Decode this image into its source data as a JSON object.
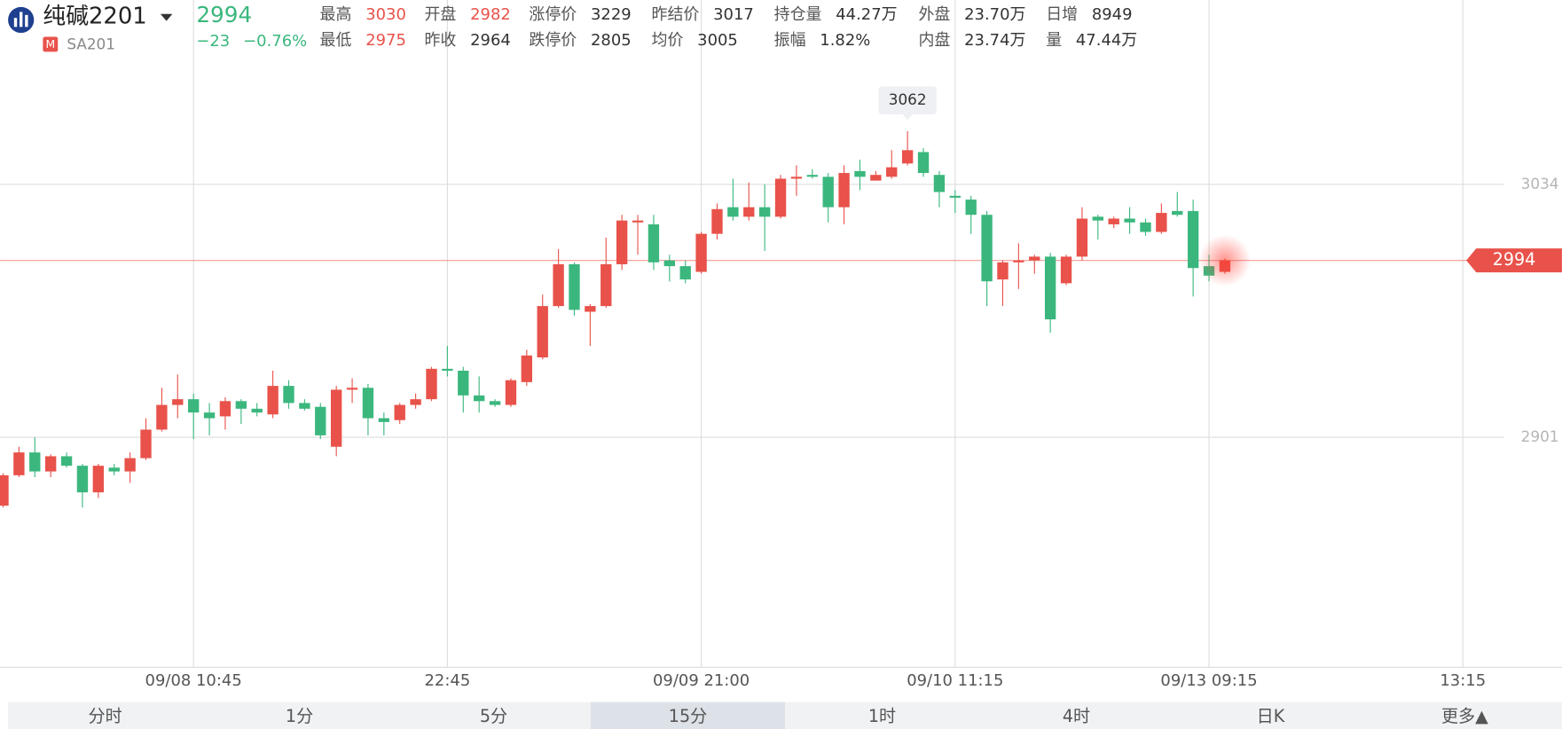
{
  "header": {
    "title": "纯碱2201",
    "code": "SA201",
    "badge": "M",
    "price": 2994,
    "change": "−23",
    "change_pct": "−0.76%",
    "stats": [
      [
        {
          "label": "最高",
          "value": 3030,
          "color": "#e8524a"
        },
        {
          "label": "开盘",
          "value": 2982,
          "color": "#e8524a"
        },
        {
          "label": "涨停价",
          "value": 3229
        },
        {
          "label": "昨结价",
          "value": 3017
        },
        {
          "label": "持仓量",
          "value": "44.27万"
        },
        {
          "label": "外盘",
          "value": "23.70万"
        },
        {
          "label": "日增",
          "value": 8949
        }
      ],
      [
        {
          "label": "最低",
          "value": 2975,
          "color": "#e8524a"
        },
        {
          "label": "昨收",
          "value": 2964
        },
        {
          "label": "跌停价",
          "value": 2805
        },
        {
          "label": "均价",
          "value": 3005
        },
        {
          "label": "振幅",
          "value": "1.82%"
        },
        {
          "label": "内盘",
          "value": "23.74万"
        },
        {
          "label": "量",
          "value": "47.44万"
        }
      ]
    ]
  },
  "chart_data": {
    "type": "candlestick",
    "up_color": "#e8524a",
    "down_color": "#3bb77e",
    "x": [
      0,
      1,
      2,
      3,
      4,
      5,
      6,
      7,
      8,
      9,
      10,
      11,
      12,
      13,
      14,
      15,
      16,
      17,
      18,
      19,
      20,
      21,
      22,
      23,
      24,
      25,
      26,
      27,
      28,
      29,
      30,
      31,
      32,
      33,
      34,
      35,
      36,
      37,
      38,
      39,
      40,
      41,
      42,
      43,
      44,
      45,
      46,
      47,
      48,
      49,
      50,
      51,
      52,
      53,
      54,
      55,
      56,
      57,
      58,
      59,
      60,
      61,
      62,
      63,
      64,
      65,
      66,
      67,
      68,
      69,
      70,
      71,
      72,
      73,
      74,
      75,
      76,
      77
    ],
    "open": [
      2865,
      2881,
      2893,
      2883,
      2891,
      2886,
      2872,
      2885,
      2883,
      2890,
      2905,
      2918,
      2921,
      2914,
      2912,
      2920,
      2916,
      2913,
      2928,
      2919,
      2917,
      2896,
      2926,
      2927,
      2911,
      2910,
      2918,
      2921,
      2937,
      2936,
      2923,
      2920,
      2918,
      2930,
      2943,
      2970,
      2992,
      2967,
      2970,
      2992,
      3014,
      3013,
      2994,
      2991,
      2988,
      3008,
      3022,
      3017,
      3022,
      3017,
      3037,
      3039,
      3038,
      3022,
      3041,
      3036,
      3038,
      3045,
      3051,
      3039,
      3028,
      3026,
      3018,
      2984,
      2993,
      2994,
      2996,
      2982,
      2996,
      3017,
      3013,
      3016,
      3014,
      3009,
      3020,
      3020,
      2991,
      2988
    ],
    "high": [
      2882,
      2896,
      2901,
      2892,
      2893,
      2887,
      2887,
      2887,
      2893,
      2911,
      2927,
      2934,
      2924,
      2919,
      2922,
      2921,
      2919,
      2936,
      2931,
      2921,
      2919,
      2928,
      2932,
      2929,
      2914,
      2919,
      2924,
      2938,
      2949,
      2938,
      2933,
      2921,
      2932,
      2947,
      2976,
      3000,
      2993,
      2971,
      3006,
      3018,
      3018,
      3018,
      2997,
      2994,
      3009,
      3024,
      3037,
      3035,
      3034,
      3039,
      3044,
      3042,
      3040,
      3044,
      3047,
      3041,
      3052,
      3062,
      3053,
      3041,
      3031,
      3028,
      3020,
      2994,
      3003,
      2997,
      2998,
      2997,
      3022,
      3018,
      3017,
      3022,
      3016,
      3024,
      3030,
      3026,
      2997,
      2995
    ],
    "low": [
      2864,
      2880,
      2880,
      2880,
      2885,
      2864,
      2869,
      2881,
      2877,
      2889,
      2904,
      2911,
      2900,
      2902,
      2905,
      2908,
      2912,
      2911,
      2916,
      2915,
      2900,
      2891,
      2919,
      2902,
      2902,
      2908,
      2916,
      2920,
      2933,
      2914,
      2914,
      2917,
      2917,
      2928,
      2942,
      2969,
      2965,
      2949,
      2969,
      2989,
      2997,
      2989,
      2983,
      2982,
      2987,
      3005,
      3015,
      3015,
      2999,
      3016,
      3028,
      3037,
      3014,
      3013,
      3031,
      3036,
      3037,
      3044,
      3038,
      3022,
      3019,
      3008,
      2970,
      2970,
      2979,
      2987,
      2956,
      2981,
      2994,
      3005,
      3011,
      3008,
      3007,
      3008,
      3017,
      2975,
      2983,
      2987
    ],
    "close": [
      2881,
      2893,
      2883,
      2891,
      2886,
      2872,
      2886,
      2883,
      2890,
      2905,
      2918,
      2921,
      2914,
      2911,
      2920,
      2916,
      2914,
      2928,
      2919,
      2916,
      2902,
      2926,
      2927,
      2911,
      2909,
      2918,
      2921,
      2937,
      2936,
      2923,
      2920,
      2918,
      2931,
      2944,
      2970,
      2992,
      2968,
      2970,
      2992,
      3015,
      3015,
      2993,
      2991,
      2984,
      3008,
      3021,
      3017,
      3022,
      3017,
      3037,
      3038,
      3038,
      3022,
      3040,
      3038,
      3039,
      3043,
      3052,
      3040,
      3030,
      3027,
      3018,
      2983,
      2993,
      2994,
      2996,
      2963,
      2996,
      3016,
      3015,
      3016,
      3014,
      3009,
      3019,
      3018,
      2990,
      2986,
      2994
    ],
    "xlim": [
      -0.19,
      94.6
    ],
    "ylim": [
      2780,
      3131
    ],
    "yticks": [
      3034,
      2901
    ],
    "xticks": [
      {
        "value": 12,
        "label": "09/08 10:45"
      },
      {
        "value": 28,
        "label": "22:45"
      },
      {
        "value": 44,
        "label": "09/09 21:00"
      },
      {
        "value": 60,
        "label": "09/10 11:15"
      },
      {
        "value": 76,
        "label": "09/13 09:15"
      },
      {
        "value": 92,
        "label": "13:15"
      }
    ],
    "grid": true
  },
  "tabs": [
    "分时",
    "1分",
    "5分",
    "15分",
    "1时",
    "4时",
    "日K",
    "更多▲"
  ],
  "selected_tab": "15分"
}
